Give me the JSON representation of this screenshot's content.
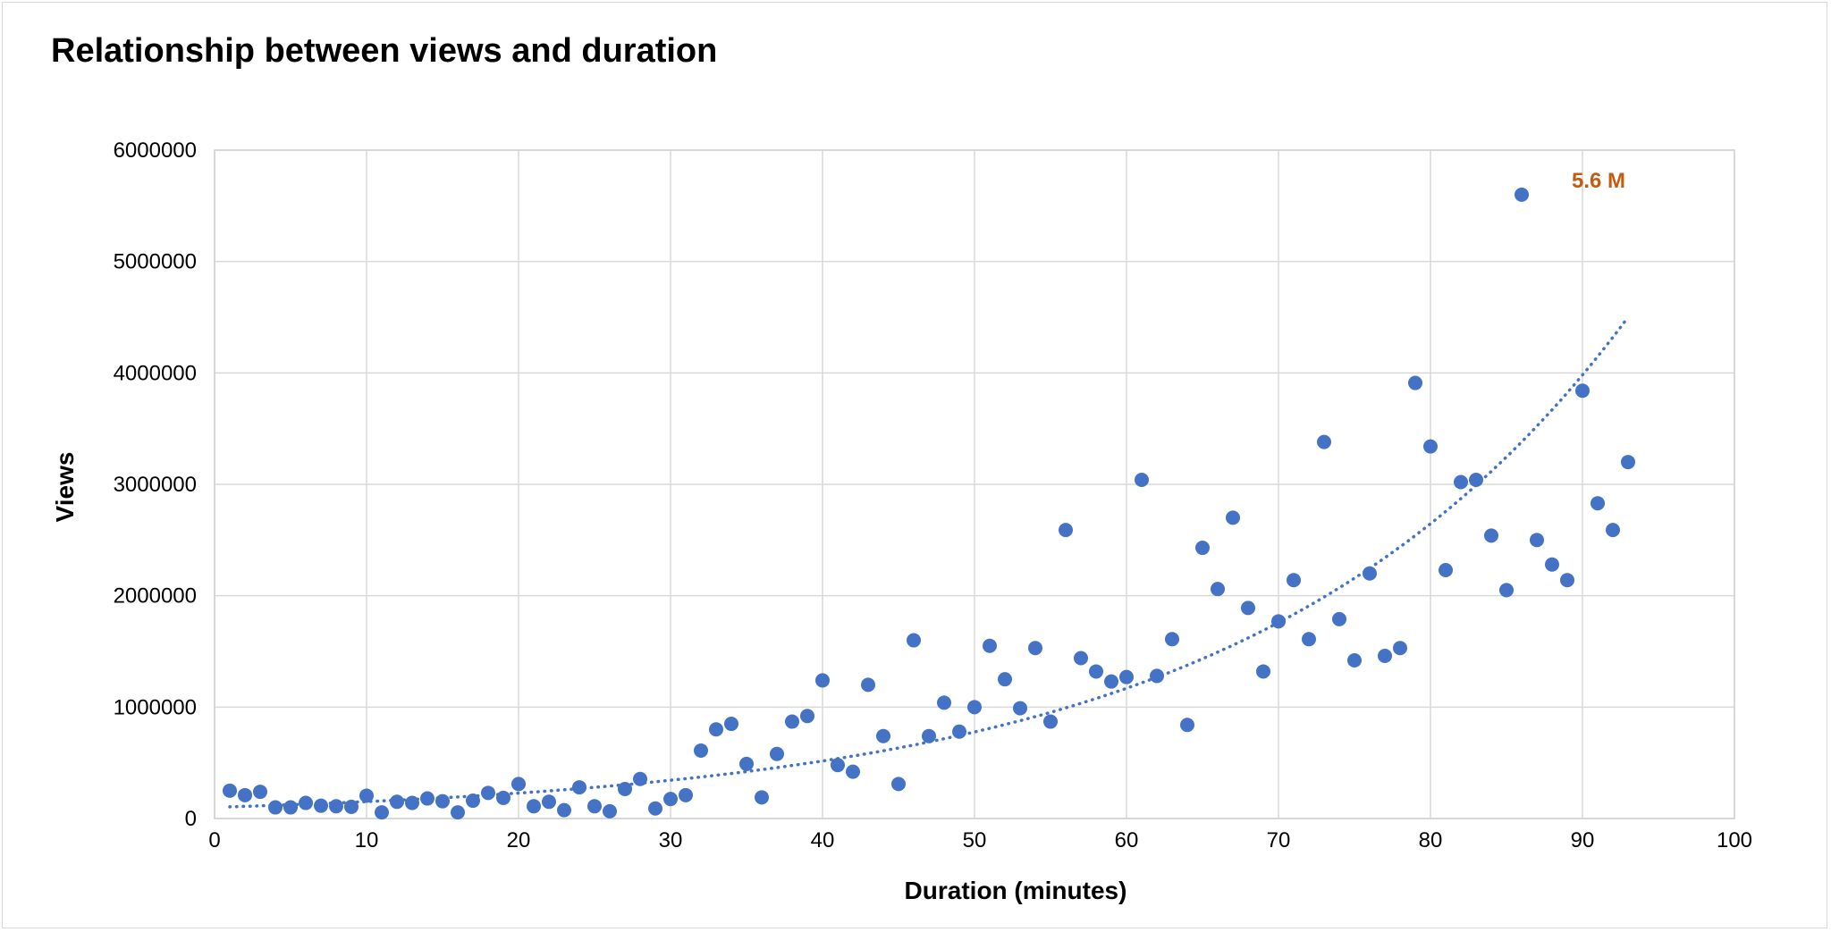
{
  "chart_data": {
    "type": "scatter",
    "title": "Relationship between views and duration",
    "xlabel": "Duration (minutes)",
    "ylabel": "Views",
    "xlim": [
      0,
      100
    ],
    "ylim": [
      0,
      6000000
    ],
    "x_ticks": [
      0,
      10,
      20,
      30,
      40,
      50,
      60,
      70,
      80,
      90,
      100
    ],
    "y_ticks": [
      0,
      1000000,
      2000000,
      3000000,
      4000000,
      5000000,
      6000000
    ],
    "grid": true,
    "legend": "none",
    "colors": {
      "points": "#4472c4",
      "trendline": "#4472c4",
      "annotation": "#c55a11",
      "grid": "#d9d9d9"
    },
    "series": [
      {
        "points": [
          [
            1,
            250000
          ],
          [
            2,
            210000
          ],
          [
            3,
            240000
          ],
          [
            4,
            100000
          ],
          [
            5,
            100000
          ],
          [
            6,
            140000
          ],
          [
            7,
            115000
          ],
          [
            8,
            110000
          ],
          [
            9,
            105000
          ],
          [
            10,
            205000
          ],
          [
            11,
            55000
          ],
          [
            12,
            150000
          ],
          [
            13,
            140000
          ],
          [
            14,
            180000
          ],
          [
            15,
            155000
          ],
          [
            16,
            55000
          ],
          [
            17,
            160000
          ],
          [
            18,
            230000
          ],
          [
            19,
            185000
          ],
          [
            20,
            310000
          ],
          [
            21,
            110000
          ],
          [
            22,
            150000
          ],
          [
            23,
            75000
          ],
          [
            24,
            280000
          ],
          [
            25,
            110000
          ],
          [
            26,
            65000
          ],
          [
            27,
            265000
          ],
          [
            28,
            355000
          ],
          [
            29,
            90000
          ],
          [
            30,
            175000
          ],
          [
            31,
            210000
          ],
          [
            32,
            610000
          ],
          [
            33,
            800000
          ],
          [
            34,
            850000
          ],
          [
            35,
            490000
          ],
          [
            36,
            190000
          ],
          [
            37,
            580000
          ],
          [
            38,
            870000
          ],
          [
            39,
            920000
          ],
          [
            40,
            1240000
          ],
          [
            41,
            480000
          ],
          [
            42,
            420000
          ],
          [
            43,
            1200000
          ],
          [
            44,
            740000
          ],
          [
            45,
            310000
          ],
          [
            46,
            1600000
          ],
          [
            47,
            740000
          ],
          [
            48,
            1040000
          ],
          [
            49,
            780000
          ],
          [
            50,
            1000000
          ],
          [
            51,
            1550000
          ],
          [
            52,
            1250000
          ],
          [
            53,
            990000
          ],
          [
            54,
            1530000
          ],
          [
            55,
            870000
          ],
          [
            56,
            2590000
          ],
          [
            57,
            1440000
          ],
          [
            58,
            1320000
          ],
          [
            59,
            1230000
          ],
          [
            60,
            1270000
          ],
          [
            61,
            3040000
          ],
          [
            62,
            1280000
          ],
          [
            63,
            1610000
          ],
          [
            64,
            840000
          ],
          [
            65,
            2430000
          ],
          [
            66,
            2060000
          ],
          [
            67,
            2700000
          ],
          [
            68,
            1890000
          ],
          [
            69,
            1320000
          ],
          [
            70,
            1770000
          ],
          [
            71,
            2140000
          ],
          [
            72,
            1610000
          ],
          [
            73,
            3380000
          ],
          [
            74,
            1790000
          ],
          [
            75,
            1420000
          ],
          [
            76,
            2200000
          ],
          [
            77,
            1460000
          ],
          [
            78,
            1530000
          ],
          [
            79,
            3910000
          ],
          [
            80,
            3340000
          ],
          [
            81,
            2230000
          ],
          [
            82,
            3020000
          ],
          [
            83,
            3040000
          ],
          [
            84,
            2540000
          ],
          [
            85,
            2050000
          ],
          [
            86,
            5600000
          ],
          [
            87,
            2500000
          ],
          [
            88,
            2280000
          ],
          [
            89,
            2140000
          ],
          [
            90,
            3840000
          ],
          [
            91,
            2830000
          ],
          [
            92,
            2590000
          ],
          [
            93,
            3200000
          ]
        ]
      }
    ],
    "trendline": {
      "type": "exponential",
      "style": "dotted",
      "x_range": [
        1,
        93
      ],
      "start_value": 105000,
      "end_value": 4500000
    },
    "annotations": [
      {
        "text": "5.6 M",
        "x": 86,
        "y": 5600000
      }
    ]
  }
}
